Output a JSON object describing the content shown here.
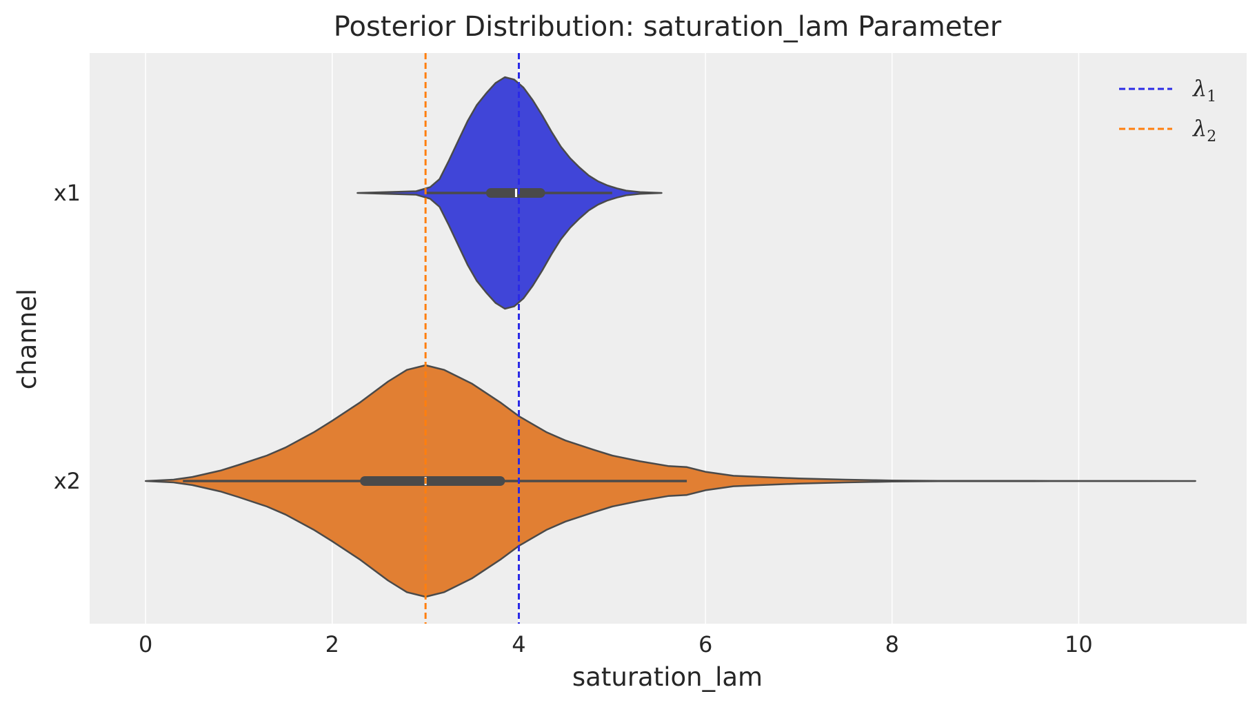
{
  "chart_data": {
    "type": "violin",
    "title": "Posterior Distribution: saturation_lam Parameter",
    "xlabel": "saturation_lam",
    "ylabel": "channel",
    "xlim": [
      -0.6,
      11.8
    ],
    "xticks": [
      0,
      2,
      4,
      6,
      8,
      10
    ],
    "xtick_labels": [
      "0",
      "2",
      "4",
      "6",
      "8",
      "10"
    ],
    "categories": [
      "x1",
      "x2"
    ],
    "grid": "x-major, white on light gray",
    "legend_placement": "top-right",
    "series": [
      {
        "name": "x1",
        "color": "#4045d8",
        "min": 2.27,
        "max": 5.53,
        "q1": 3.7,
        "median": 3.97,
        "q3": 4.23,
        "whisker_low": 3.0,
        "whisker_high": 5.0,
        "density": [
          [
            2.27,
            0.0
          ],
          [
            2.9,
            0.015
          ],
          [
            3.05,
            0.05
          ],
          [
            3.15,
            0.12
          ],
          [
            3.25,
            0.28
          ],
          [
            3.35,
            0.45
          ],
          [
            3.45,
            0.62
          ],
          [
            3.55,
            0.76
          ],
          [
            3.65,
            0.86
          ],
          [
            3.75,
            0.95
          ],
          [
            3.85,
            1.0
          ],
          [
            3.95,
            0.98
          ],
          [
            4.05,
            0.91
          ],
          [
            4.15,
            0.8
          ],
          [
            4.25,
            0.67
          ],
          [
            4.35,
            0.53
          ],
          [
            4.45,
            0.4
          ],
          [
            4.55,
            0.3
          ],
          [
            4.65,
            0.22
          ],
          [
            4.75,
            0.15
          ],
          [
            4.85,
            0.1
          ],
          [
            4.95,
            0.065
          ],
          [
            5.05,
            0.04
          ],
          [
            5.15,
            0.02
          ],
          [
            5.3,
            0.007
          ],
          [
            5.53,
            0.0
          ]
        ]
      },
      {
        "name": "x2",
        "color": "#e17f33",
        "min": 0.0,
        "max": 11.25,
        "q1": 2.35,
        "median": 3.0,
        "q3": 3.8,
        "whisker_low": 0.4,
        "whisker_high": 5.8,
        "density": [
          [
            0.0,
            0.0
          ],
          [
            0.3,
            0.012
          ],
          [
            0.5,
            0.035
          ],
          [
            0.8,
            0.09
          ],
          [
            1.0,
            0.14
          ],
          [
            1.3,
            0.22
          ],
          [
            1.5,
            0.29
          ],
          [
            1.8,
            0.42
          ],
          [
            2.0,
            0.52
          ],
          [
            2.3,
            0.68
          ],
          [
            2.6,
            0.86
          ],
          [
            2.8,
            0.96
          ],
          [
            3.0,
            1.0
          ],
          [
            3.2,
            0.96
          ],
          [
            3.5,
            0.84
          ],
          [
            3.8,
            0.68
          ],
          [
            4.0,
            0.56
          ],
          [
            4.3,
            0.42
          ],
          [
            4.5,
            0.35
          ],
          [
            4.8,
            0.27
          ],
          [
            5.0,
            0.22
          ],
          [
            5.3,
            0.17
          ],
          [
            5.6,
            0.13
          ],
          [
            5.8,
            0.12
          ],
          [
            6.0,
            0.08
          ],
          [
            6.3,
            0.045
          ],
          [
            6.6,
            0.035
          ],
          [
            7.0,
            0.022
          ],
          [
            7.5,
            0.012
          ],
          [
            7.8,
            0.008
          ],
          [
            8.0,
            0.004
          ],
          [
            8.5,
            0.002
          ],
          [
            9.5,
            0.001
          ],
          [
            11.25,
            0.0
          ]
        ]
      }
    ],
    "reference_lines": [
      {
        "label": "λ1",
        "x": 4.0,
        "color": "#2a2ae6"
      },
      {
        "label": "λ2",
        "x": 3.0,
        "color": "#ff7f0e"
      }
    ]
  }
}
